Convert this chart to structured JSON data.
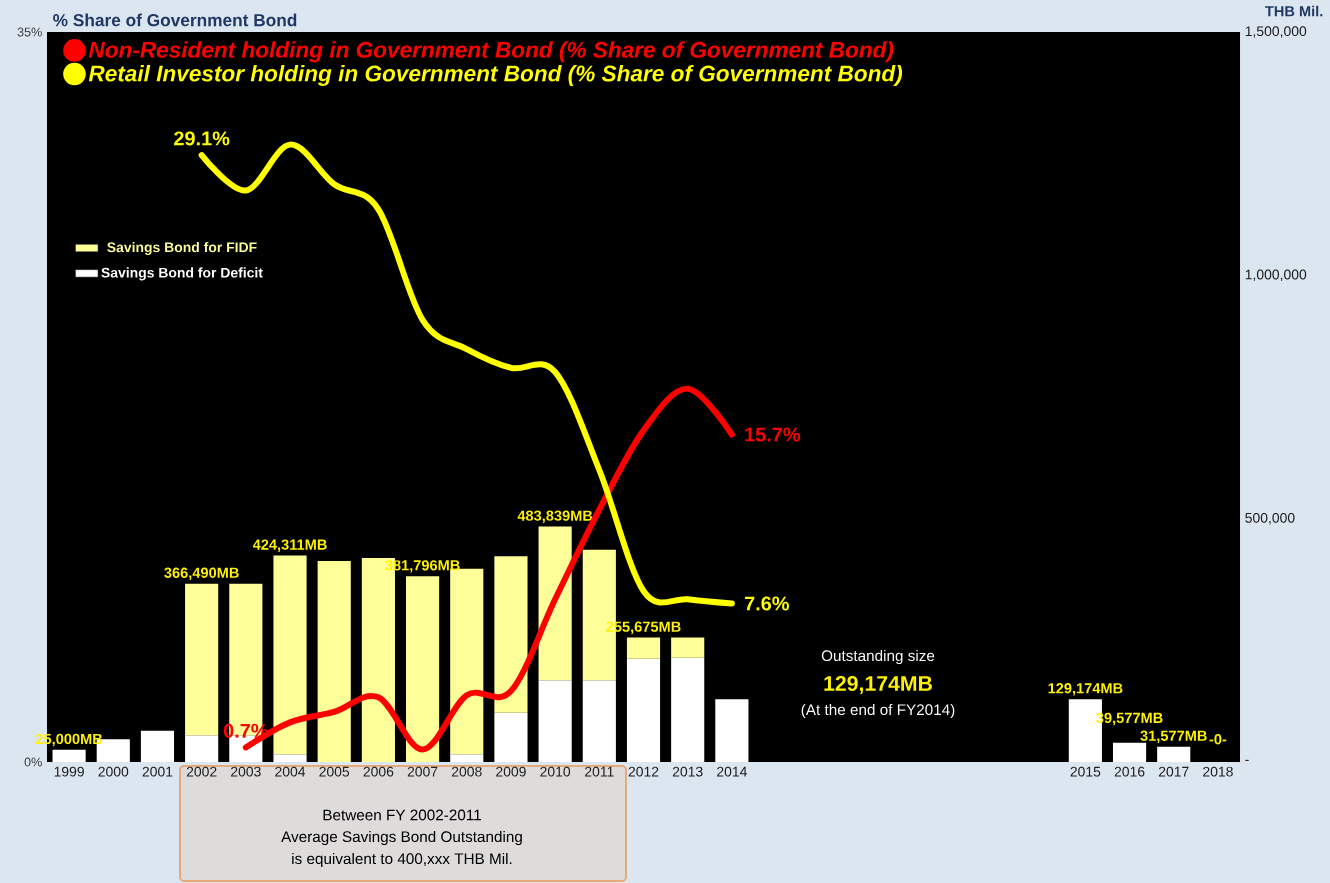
{
  "chart_data": {
    "type": "bar",
    "stacked": true,
    "ylabel": "% Share of Government Bond",
    "y2label": "THB Mil.",
    "categories": [
      "1999",
      "2000",
      "2001",
      "2002",
      "2003",
      "2004",
      "2005",
      "2006",
      "2007",
      "2008",
      "2009",
      "2010",
      "2011",
      "2012",
      "2013",
      "2014",
      null,
      null,
      null,
      null,
      null,
      null,
      null,
      "2015",
      "2016",
      "2017",
      "2018"
    ],
    "series": [
      {
        "name": "Savings Bond for Deficit",
        "axis": "y2",
        "color": "#ffffff",
        "values": [
          25000,
          47000,
          64000,
          55000,
          55000,
          16000,
          null,
          null,
          null,
          16000,
          101000,
          168000,
          168000,
          212000,
          214000,
          129174,
          null,
          null,
          null,
          null,
          null,
          null,
          null,
          129174,
          39577,
          31577,
          0
        ]
      },
      {
        "name": "Savings Bond for FIDF",
        "axis": "y2",
        "color": "#ffff99",
        "values": [
          null,
          null,
          null,
          311490,
          311490,
          408311,
          413000,
          419000,
          381796,
          381000,
          322000,
          315839,
          268000,
          43675,
          42000,
          null,
          null,
          null,
          null,
          null,
          null,
          null,
          null,
          null,
          null,
          null,
          null
        ]
      },
      {
        "name": "Non-Resident holding in Government Bond (% Share of Government Bond)",
        "type": "line",
        "color": "#ff0000",
        "values": [
          null,
          null,
          null,
          null,
          0.7,
          1.9,
          2.4,
          3.1,
          0.6,
          3.2,
          3.4,
          7.8,
          12.1,
          15.9,
          17.9,
          15.7,
          null,
          null,
          null,
          null,
          null,
          null,
          null,
          null,
          null,
          null,
          null
        ],
        "value_labels": [
          null,
          null,
          null,
          null,
          "0.7%",
          null,
          null,
          null,
          null,
          null,
          null,
          null,
          null,
          null,
          null,
          "15.7%",
          null,
          null,
          null,
          null,
          null,
          null,
          null,
          null,
          null,
          null,
          null
        ]
      },
      {
        "name": "Retail Investor holding in Government Bond (% Share of Government Bond)",
        "type": "line",
        "color": "#ffff00",
        "values": [
          null,
          null,
          null,
          29.1,
          27.4,
          29.6,
          27.7,
          26.5,
          21.2,
          19.8,
          18.9,
          18.7,
          14.0,
          8.2,
          7.8,
          7.6,
          null,
          null,
          null,
          null,
          null,
          null,
          null,
          null,
          null,
          null,
          null
        ],
        "value_labels": [
          null,
          null,
          null,
          "29.1%",
          null,
          null,
          null,
          null,
          null,
          null,
          null,
          null,
          null,
          null,
          null,
          "7.6%",
          null,
          null,
          null,
          null,
          null,
          null,
          null,
          null,
          null,
          null,
          null
        ]
      }
    ],
    "totals": [
      "25,000MB",
      null,
      null,
      "366,490MB",
      null,
      "424,311MB",
      null,
      null,
      "381,796MB",
      null,
      null,
      "483,839MB",
      null,
      "255,675MB",
      null,
      null,
      null,
      null,
      null,
      null,
      null,
      null,
      null,
      "129,174MB",
      "39,577MB",
      "31,577MB",
      "-0-"
    ],
    "ylim": [
      0,
      35
    ],
    "yticks": [
      {
        "value": 0,
        "label": "0%"
      },
      {
        "value": 35,
        "label": "35%"
      }
    ],
    "y2lim": [
      0,
      1500000
    ],
    "y2ticks": [
      {
        "value": 0,
        "label": "-"
      },
      {
        "value": 500000,
        "label": "500,000"
      },
      {
        "value": 1000000,
        "label": "1,000,000"
      },
      {
        "value": 1500000,
        "label": "1,500,000"
      }
    ],
    "legend": "top left",
    "annotations": [
      "Outstanding size",
      "129,174MB",
      "(At the end of FY2014)",
      "Between FY 2002-2011",
      "Average Savings Bond Outstanding",
      "is equivalent to 400,xxx THB Mil."
    ]
  }
}
